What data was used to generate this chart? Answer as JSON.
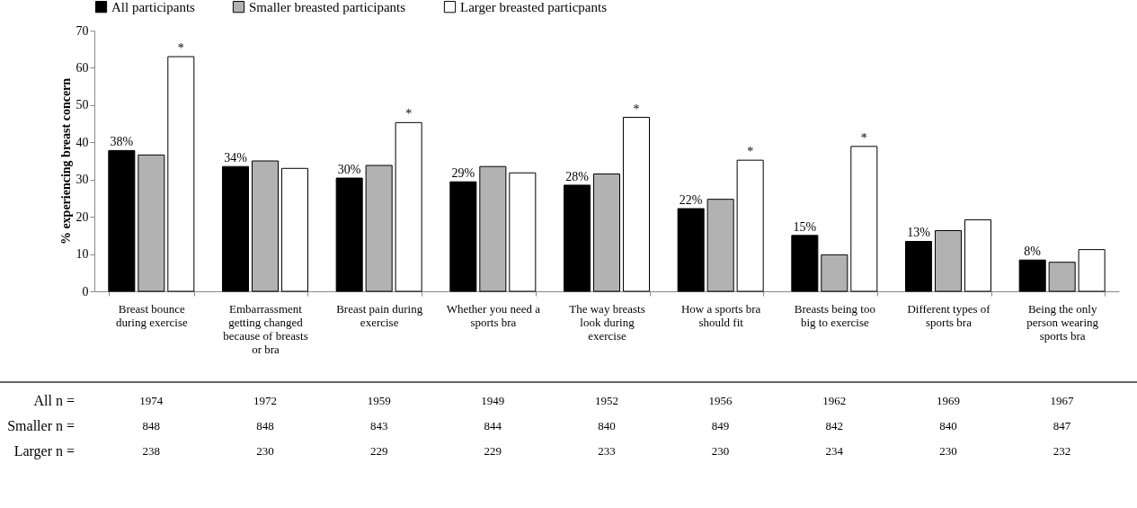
{
  "chart_data": {
    "type": "bar",
    "categories": [
      "Breast bounce during exercise",
      "Embarrassment getting changed because of breasts or bra",
      "Breast pain during exercise",
      "Whether you need a sports bra",
      "The way breasts look during exercise",
      "How a sports bra should fit",
      "Breasts being too big to exercise",
      "Different types of sports bra",
      "Being the only person wearing sports bra"
    ],
    "ylabel": "% experiencing breast concern",
    "series": [
      {
        "name": "All participants",
        "color": "#000000",
        "values": [
          37.8,
          33.5,
          30.4,
          29.4,
          28.5,
          22.2,
          15,
          13.4,
          8.4
        ],
        "value_labels": [
          "38%",
          "34%",
          "30%",
          "29%",
          "28%",
          "22%",
          "15%",
          "13%",
          "8%"
        ]
      },
      {
        "name": "Smaller breasted participants",
        "color": "#b2b2b2",
        "values": [
          36.6,
          35,
          33.8,
          33.5,
          31.5,
          24.7,
          9.8,
          16.3,
          7.8
        ]
      },
      {
        "name": "Larger breasted particpants",
        "color": "#ffffff",
        "values": [
          63,
          33,
          45.3,
          31.8,
          46.7,
          35.2,
          38.9,
          19.2,
          11.2
        ],
        "value_labels": [
          "*",
          null,
          "*",
          null,
          "*",
          "*",
          "*",
          null,
          null
        ]
      }
    ],
    "ylim": [
      0,
      70
    ],
    "yticks": [
      0,
      10,
      20,
      30,
      40,
      50,
      60,
      70
    ],
    "legend": "top",
    "grid": false,
    "annotations": [
      "All n =",
      "1974",
      "1972",
      "1959",
      "1949",
      "1952",
      "1956",
      "1962",
      "1969",
      "1967",
      "Smaller n =",
      "848",
      "848",
      "843",
      "844",
      "840",
      "849",
      "842",
      "840",
      "847",
      "Larger n =",
      "238",
      "230",
      "229",
      "229",
      "233",
      "230",
      "234",
      "230",
      "232"
    ]
  }
}
